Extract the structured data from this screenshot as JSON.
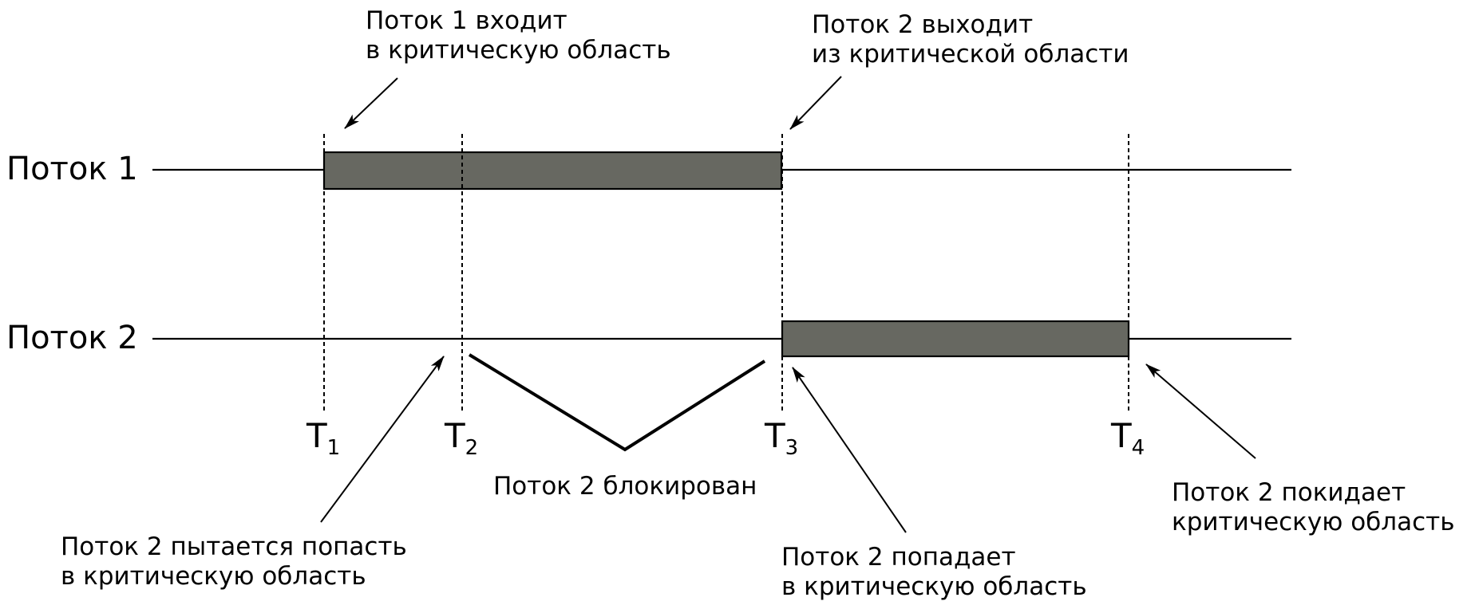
{
  "diagram": {
    "lanes": [
      {
        "label": "Поток 1"
      },
      {
        "label": "Поток 2"
      }
    ],
    "time_markers": [
      {
        "letter": "T",
        "index": "1"
      },
      {
        "letter": "T",
        "index": "2"
      },
      {
        "letter": "T",
        "index": "3"
      },
      {
        "letter": "T",
        "index": "4"
      }
    ],
    "annotations": {
      "t1_enter": {
        "line1": "Поток 1 входит",
        "line2": "в критическую область"
      },
      "t2_exit": {
        "line1": "Поток 2 выходит",
        "line2": "из критической области"
      },
      "t2_try": {
        "line1": "Поток 2 пытается попасть",
        "line2": "в критическую область"
      },
      "t2_blocked": {
        "line1": "Поток 2 блокирован"
      },
      "t2_enter": {
        "line1": "Поток 2 попадает",
        "line2": "в критическую область"
      },
      "t2_leave": {
        "line1": "Поток 2 покидает",
        "line2": "критическую область"
      }
    },
    "colors": {
      "critical_section_fill": "#676861",
      "line": "#000000",
      "background": "#ffffff"
    }
  }
}
